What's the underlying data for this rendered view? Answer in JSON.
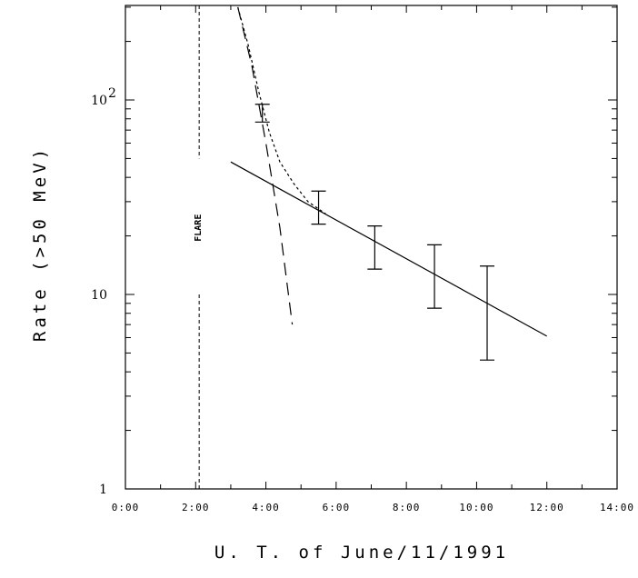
{
  "chart_data": {
    "type": "scatter",
    "xlabel": "U. T.  of  June/11/1991",
    "ylabel": "Rate  (>50 MeV)",
    "x_unit": "hours",
    "xlim": [
      0,
      14
    ],
    "ylim": [
      1,
      300
    ],
    "yscale": "log",
    "grid": false,
    "x_tick_labels": [
      "0:00",
      "2:00",
      "4:00",
      "6:00",
      "8:00",
      "10:00",
      "12:00",
      "14:00"
    ],
    "x_tick_values": [
      0,
      2,
      4,
      6,
      8,
      10,
      12,
      14
    ],
    "y_tick_labels": [
      {
        "base": "1",
        "exp": "",
        "value": 1
      },
      {
        "base": "10",
        "exp": "",
        "value": 10
      },
      {
        "base": "10",
        "exp": "2",
        "value": 100
      }
    ],
    "annotations": [
      {
        "text": "FLARE",
        "x": 2.05,
        "y": 22
      }
    ],
    "flare_x": 2.1,
    "series": [
      {
        "style": "errorbar",
        "points": [
          {
            "x": 3.9,
            "y": 86,
            "ylow": 77,
            "yhigh": 95
          },
          {
            "x": 5.5,
            "y": 28,
            "ylow": 23,
            "yhigh": 34
          },
          {
            "x": 7.1,
            "y": 18,
            "ylow": 13.5,
            "yhigh": 22.5
          },
          {
            "x": 8.8,
            "y": 13,
            "ylow": 8.5,
            "yhigh": 18
          },
          {
            "x": 10.3,
            "y": 9.2,
            "ylow": 4.6,
            "yhigh": 14
          }
        ]
      },
      {
        "style": "solid",
        "points": [
          {
            "x": 3.0,
            "y": 48
          },
          {
            "x": 12.0,
            "y": 6.1
          }
        ]
      },
      {
        "style": "long-dash",
        "points": [
          {
            "x": 3.2,
            "y": 300
          },
          {
            "x": 3.6,
            "y": 150
          },
          {
            "x": 4.0,
            "y": 60
          },
          {
            "x": 4.4,
            "y": 22
          },
          {
            "x": 4.75,
            "y": 7
          }
        ]
      },
      {
        "style": "dotted",
        "points": [
          {
            "x": 3.2,
            "y": 300
          },
          {
            "x": 3.5,
            "y": 190
          },
          {
            "x": 3.8,
            "y": 110
          },
          {
            "x": 4.1,
            "y": 68
          },
          {
            "x": 4.4,
            "y": 48
          },
          {
            "x": 4.8,
            "y": 37
          },
          {
            "x": 5.2,
            "y": 30
          },
          {
            "x": 5.7,
            "y": 26
          }
        ]
      }
    ]
  }
}
